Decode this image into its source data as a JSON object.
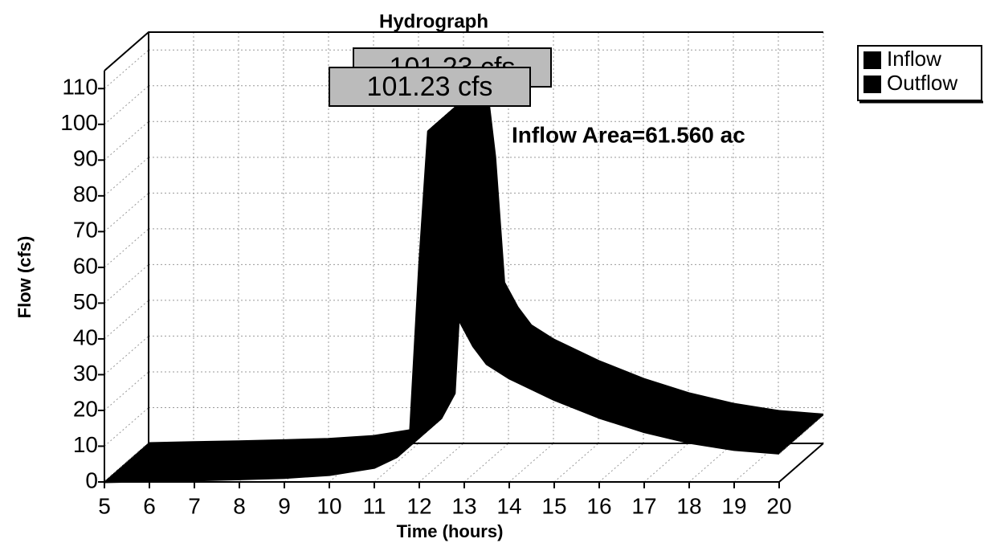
{
  "chart_data": {
    "type": "area3d",
    "title": "Hydrograph",
    "x_label": "Time (hours)",
    "y_label": "Flow (cfs)",
    "x": [
      5,
      6,
      7,
      8,
      9,
      10,
      11,
      11.5,
      11.8,
      12,
      12.2,
      12.5,
      12.7,
      12.9,
      13.2,
      13.5,
      14,
      15,
      16,
      17,
      18,
      19,
      20
    ],
    "series": [
      {
        "name": "Inflow",
        "color": "#000000",
        "values": [
          0,
          0.3,
          0.5,
          0.8,
          1.2,
          2,
          4,
          7,
          14,
          60,
          98,
          101.23,
          80,
          45,
          38,
          33,
          29,
          23,
          18,
          14,
          11,
          9,
          8
        ]
      },
      {
        "name": "Outflow",
        "color": "#000000",
        "values": [
          0,
          0.3,
          0.5,
          0.8,
          1.2,
          2,
          4,
          7,
          14,
          60,
          98,
          101.23,
          80,
          45,
          38,
          33,
          29,
          23,
          18,
          14,
          11,
          9,
          8
        ]
      }
    ],
    "annotations": [
      "101.23 cfs",
      "101.23 cfs",
      "Inflow Area=61.560 ac"
    ],
    "xlim": [
      5,
      20
    ],
    "xticks": [
      5,
      6,
      7,
      8,
      9,
      10,
      11,
      12,
      13,
      14,
      15,
      16,
      17,
      18,
      19,
      20
    ],
    "ylim": [
      0,
      115
    ],
    "yticks": [
      0,
      10,
      20,
      30,
      40,
      50,
      60,
      70,
      80,
      90,
      100,
      110
    ],
    "grid": true,
    "legend": "top-right"
  }
}
